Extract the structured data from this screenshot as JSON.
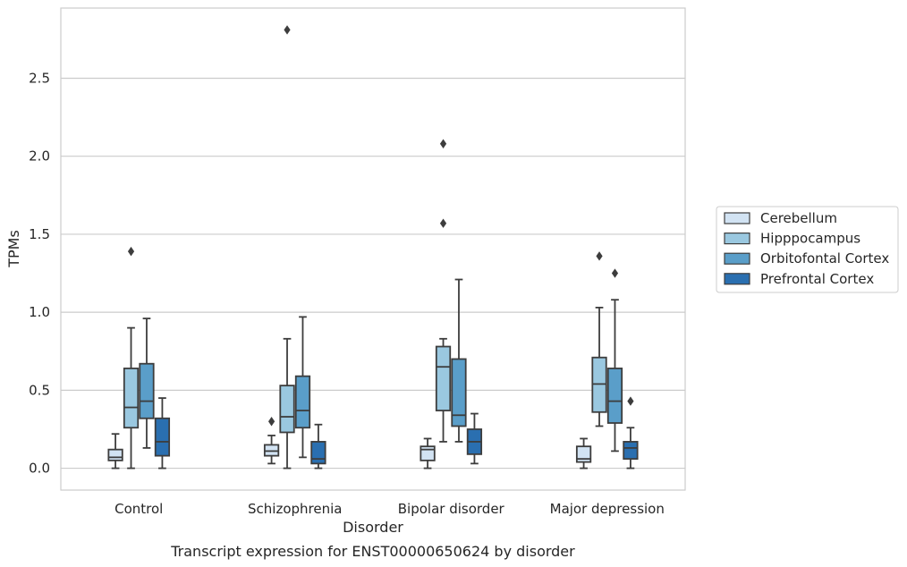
{
  "chart_data": {
    "type": "box",
    "title": "",
    "caption": "Transcript expression for ENST00000650624 by disorder",
    "xlabel": "Disorder",
    "ylabel": "TPMs",
    "ylim": [
      -0.14,
      2.95
    ],
    "yticks": [
      "0.0",
      "0.5",
      "1.0",
      "1.5",
      "2.0",
      "2.5"
    ],
    "ytick_values": [
      0,
      0.5,
      1.0,
      1.5,
      2.0,
      2.5
    ],
    "grid": "horizontal",
    "legend_position": "right",
    "categories": [
      "Control",
      "Schizophrenia",
      "Bipolar disorder",
      "Major depression"
    ],
    "series": [
      {
        "name": "Cerebellum",
        "color": "#d2e3f3",
        "boxes": [
          {
            "whisker_low": 0.0,
            "q1": 0.05,
            "median": 0.07,
            "q3": 0.12,
            "whisker_high": 0.22,
            "outliers": []
          },
          {
            "whisker_low": 0.03,
            "q1": 0.08,
            "median": 0.11,
            "q3": 0.15,
            "whisker_high": 0.21,
            "outliers": [
              0.3
            ]
          },
          {
            "whisker_low": 0.0,
            "q1": 0.05,
            "median": 0.12,
            "q3": 0.14,
            "whisker_high": 0.19,
            "outliers": []
          },
          {
            "whisker_low": 0.0,
            "q1": 0.04,
            "median": 0.06,
            "q3": 0.14,
            "whisker_high": 0.19,
            "outliers": []
          }
        ]
      },
      {
        "name": "Hipppocampus",
        "color": "#9ac8e0",
        "boxes": [
          {
            "whisker_low": 0.0,
            "q1": 0.26,
            "median": 0.39,
            "q3": 0.64,
            "whisker_high": 0.9,
            "outliers": [
              1.39
            ]
          },
          {
            "whisker_low": 0.0,
            "q1": 0.23,
            "median": 0.33,
            "q3": 0.53,
            "whisker_high": 0.83,
            "outliers": [
              2.81
            ]
          },
          {
            "whisker_low": 0.17,
            "q1": 0.37,
            "median": 0.65,
            "q3": 0.78,
            "whisker_high": 0.83,
            "outliers": [
              1.57,
              2.08
            ]
          },
          {
            "whisker_low": 0.27,
            "q1": 0.36,
            "median": 0.54,
            "q3": 0.71,
            "whisker_high": 1.03,
            "outliers": [
              1.36
            ]
          }
        ]
      },
      {
        "name": "Orbitofontal Cortex",
        "color": "#5a9ec9",
        "boxes": [
          {
            "whisker_low": 0.13,
            "q1": 0.32,
            "median": 0.43,
            "q3": 0.67,
            "whisker_high": 0.96,
            "outliers": []
          },
          {
            "whisker_low": 0.07,
            "q1": 0.26,
            "median": 0.37,
            "q3": 0.59,
            "whisker_high": 0.97,
            "outliers": []
          },
          {
            "whisker_low": 0.17,
            "q1": 0.27,
            "median": 0.34,
            "q3": 0.7,
            "whisker_high": 1.21,
            "outliers": []
          },
          {
            "whisker_low": 0.11,
            "q1": 0.29,
            "median": 0.43,
            "q3": 0.64,
            "whisker_high": 1.08,
            "outliers": [
              1.25
            ]
          }
        ]
      },
      {
        "name": "Prefrontal Cortex",
        "color": "#2a6fb0",
        "boxes": [
          {
            "whisker_low": 0.0,
            "q1": 0.08,
            "median": 0.17,
            "q3": 0.32,
            "whisker_high": 0.45,
            "outliers": []
          },
          {
            "whisker_low": 0.0,
            "q1": 0.03,
            "median": 0.06,
            "q3": 0.17,
            "whisker_high": 0.28,
            "outliers": []
          },
          {
            "whisker_low": 0.03,
            "q1": 0.09,
            "median": 0.17,
            "q3": 0.25,
            "whisker_high": 0.35,
            "outliers": []
          },
          {
            "whisker_low": 0.0,
            "q1": 0.06,
            "median": 0.13,
            "q3": 0.17,
            "whisker_high": 0.26,
            "outliers": [
              0.43
            ]
          }
        ]
      }
    ]
  }
}
